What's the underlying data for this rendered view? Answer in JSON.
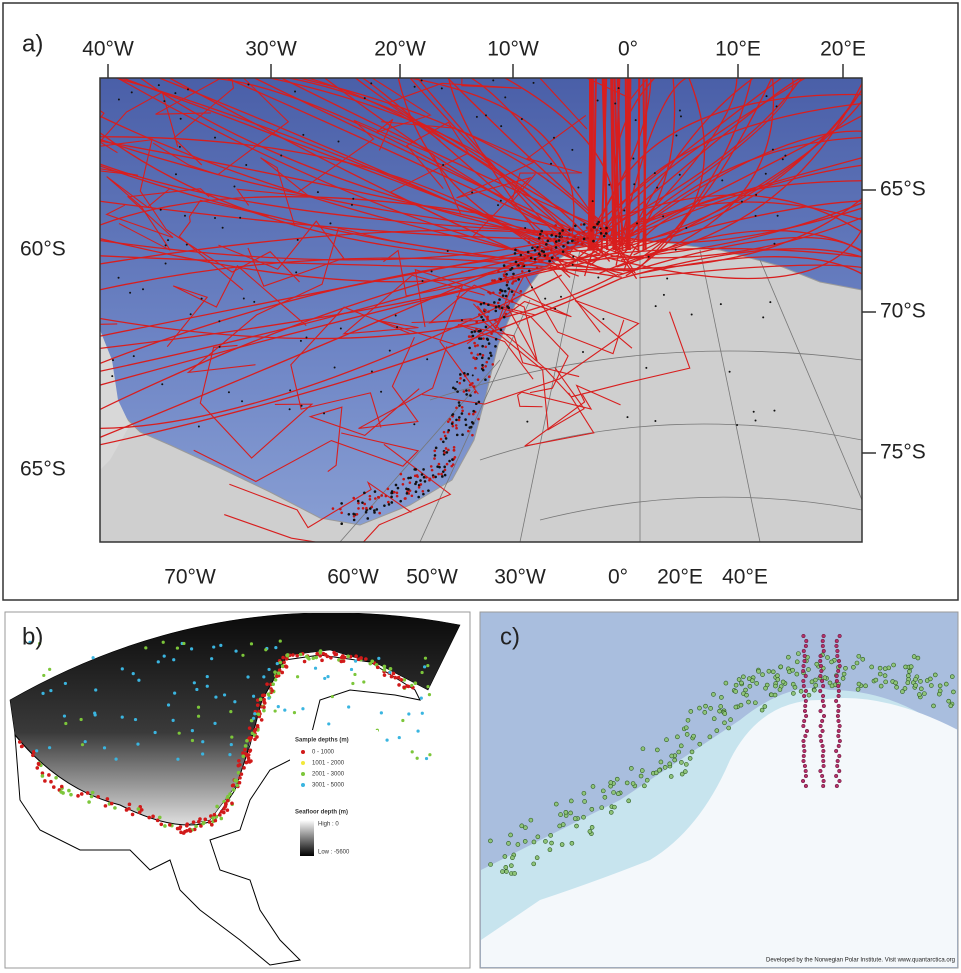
{
  "panel_a": {
    "label": "a)",
    "top_labels": [
      "40°W",
      "30°W",
      "20°W",
      "10°W",
      "0°",
      "10°E",
      "20°E"
    ],
    "left_labels": [
      "60°S",
      "65°S"
    ],
    "right_labels": [
      "65°S",
      "70°S",
      "75°S"
    ],
    "bottom_labels": [
      "70°W",
      "60°W",
      "50°W",
      "30°W",
      "0°",
      "20°E",
      "40°E"
    ]
  },
  "panel_b": {
    "label": "b)",
    "legend_title": "Sample depths (m)",
    "legend_items": [
      "0 - 1000",
      "1001 - 2000",
      "2001 - 3000",
      "3001 - 5000"
    ],
    "depth_title": "Seafloor depth (m)",
    "depth_high": "High : 0",
    "depth_low": "Low : -5600"
  },
  "panel_c": {
    "label": "c)",
    "credit": "Developed by the Norwegian Polar Institute. Visit www.quantarctica.org"
  }
}
